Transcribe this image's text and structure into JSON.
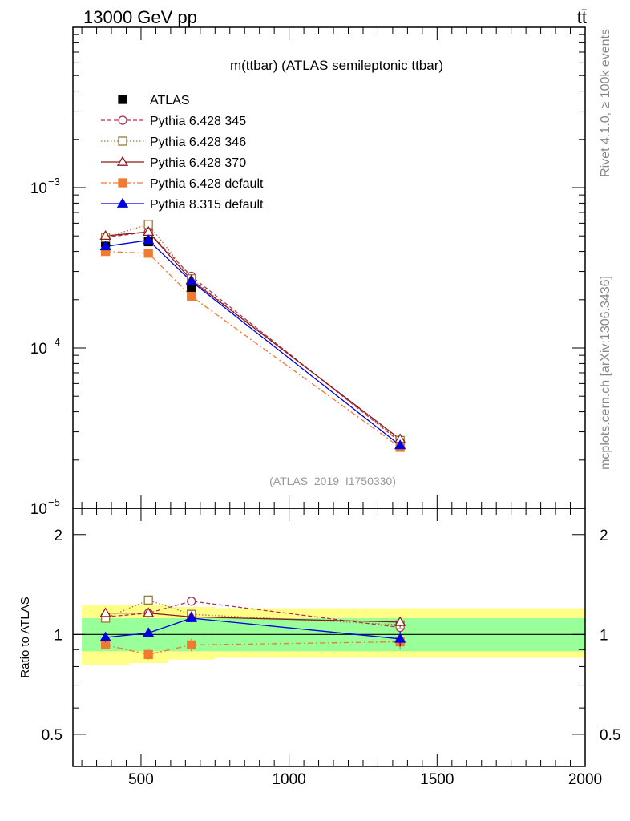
{
  "header": {
    "left_label": "13000 GeV pp",
    "right_label": "tt̄",
    "side_label_top": "Rivet 4.1.0, ≥ 100k events",
    "side_label_bottom": "mcplots.cern.ch [arXiv:1306.3436]"
  },
  "chart_data": {
    "type": "line",
    "title": "m(ttbar) (ATLAS semileptonic ttbar)",
    "analysis_id": "(ATLAS_2019_I1750330)",
    "xlabel": "",
    "ylabel": "",
    "xlim": [
      270,
      2000
    ],
    "ylim": [
      1e-05,
      0.01
    ],
    "yscale": "log",
    "x_tick_labels": [
      "500",
      "1000",
      "1500",
      "2000"
    ],
    "y_tick_labels": [
      {
        "base": "10",
        "exp": "−3"
      },
      {
        "base": "10",
        "exp": "−4"
      },
      {
        "base": "10",
        "exp": "−5"
      }
    ],
    "x": [
      380,
      525,
      670,
      1375
    ],
    "series": [
      {
        "name": "ATLAS",
        "color": "#000000",
        "style": "points",
        "marker": "square-filled",
        "values": [
          0.00043,
          0.00046,
          0.000235,
          2.5e-05
        ]
      },
      {
        "name": "Pythia 6.428 345",
        "color": "#b0305a",
        "style": "dashed",
        "marker": "circle-open",
        "values": [
          0.00049,
          0.00053,
          0.00028,
          2.6e-05
        ]
      },
      {
        "name": "Pythia 6.428 346",
        "color": "#9a7a3a",
        "style": "dotted",
        "marker": "square-open",
        "values": [
          0.00049,
          0.00059,
          0.00027,
          2.65e-05
        ]
      },
      {
        "name": "Pythia 6.428 370",
        "color": "#8b1a1a",
        "style": "solid",
        "marker": "triangle-open",
        "values": [
          0.0005,
          0.00053,
          0.000265,
          2.7e-05
        ]
      },
      {
        "name": "Pythia 6.428 default",
        "color": "#f07a30",
        "style": "dashdot",
        "marker": "square-filled",
        "values": [
          0.0004,
          0.00039,
          0.00021,
          2.4e-05
        ]
      },
      {
        "name": "Pythia 8.315 default",
        "color": "#0000dd",
        "style": "solid",
        "marker": "triangle-filled",
        "values": [
          0.00043,
          0.00047,
          0.00026,
          2.47e-05
        ]
      }
    ],
    "ratio_panel": {
      "ylabel": "Ratio to ATLAS",
      "ylim": [
        0.4,
        2.4
      ],
      "yscale": "log",
      "y_tick_labels": [
        "2",
        "1",
        "0.5"
      ],
      "uncertainty_bands": [
        {
          "xmin": 300,
          "xmax": 460,
          "stat_lo": 0.89,
          "stat_hi": 1.12,
          "tot_lo": 0.81,
          "tot_hi": 1.23
        },
        {
          "xmin": 460,
          "xmax": 590,
          "stat_lo": 0.89,
          "stat_hi": 1.12,
          "tot_lo": 0.82,
          "tot_hi": 1.23
        },
        {
          "xmin": 590,
          "xmax": 750,
          "stat_lo": 0.89,
          "stat_hi": 1.12,
          "tot_lo": 0.84,
          "tot_hi": 1.21
        },
        {
          "xmin": 750,
          "xmax": 2000,
          "stat_lo": 0.89,
          "stat_hi": 1.12,
          "tot_lo": 0.85,
          "tot_hi": 1.2
        }
      ],
      "series": [
        {
          "name": "Pythia 6.428 345",
          "values": [
            1.13,
            1.16,
            1.26,
            1.05
          ],
          "errors": [
            0.03,
            0.03,
            0.03,
            0.03
          ]
        },
        {
          "name": "Pythia 6.428 346",
          "values": [
            1.12,
            1.27,
            1.15,
            1.07
          ],
          "errors": [
            0.03,
            0.03,
            0.03,
            0.03
          ]
        },
        {
          "name": "Pythia 6.428 370",
          "values": [
            1.16,
            1.16,
            1.13,
            1.09
          ],
          "errors": [
            0.03,
            0.03,
            0.03,
            0.04
          ]
        },
        {
          "name": "Pythia 6.428 default",
          "values": [
            0.93,
            0.87,
            0.93,
            0.95
          ],
          "errors": [
            0.03,
            0.03,
            0.04,
            0.05
          ]
        },
        {
          "name": "Pythia 8.315 default",
          "values": [
            0.98,
            1.01,
            1.12,
            0.97
          ],
          "errors": [
            0.03,
            0.03,
            0.03,
            0.05
          ]
        }
      ]
    }
  }
}
